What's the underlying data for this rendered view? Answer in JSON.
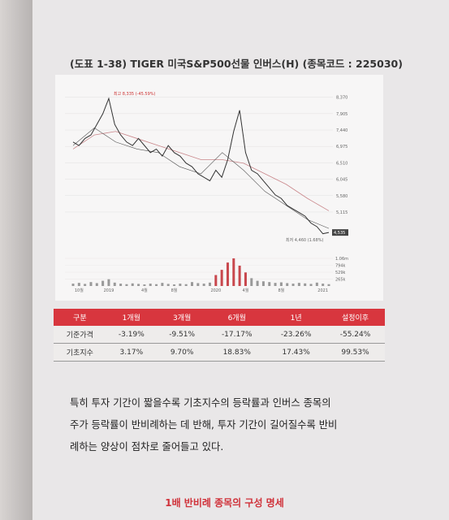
{
  "figure": {
    "title": "(도표 1-38) TIGER 미국S&P500선물 인버스(H) (종목코드 : 225030)",
    "chart": {
      "type": "line",
      "price": [
        7100,
        7000,
        7200,
        7300,
        7600,
        7900,
        8335,
        7600,
        7300,
        7100,
        7000,
        7200,
        7000,
        6800,
        6900,
        6700,
        7000,
        6800,
        6700,
        6500,
        6400,
        6200,
        6100,
        6000,
        6300,
        6100,
        6600,
        7400,
        8000,
        6800,
        6300,
        6200,
        6000,
        5800,
        5600,
        5500,
        5300,
        5200,
        5100,
        5000,
        4800,
        4700,
        4500,
        4535
      ],
      "ma_long": [
        6900,
        7300,
        7400,
        7200,
        7000,
        6800,
        6600,
        6600,
        6500,
        6200,
        5900,
        5500,
        5150
      ],
      "ma_short": [
        7000,
        7500,
        7100,
        6900,
        6800,
        6400,
        6200,
        6800,
        6300,
        5700,
        5300,
        4900,
        4650
      ],
      "ylim": [
        4400,
        8500
      ],
      "yticks": [
        {
          "value": 8370,
          "label": "8,370"
        },
        {
          "value": 7905,
          "label": "7,905"
        },
        {
          "value": 7440,
          "label": "7,440"
        },
        {
          "value": 6975,
          "label": "6,975"
        },
        {
          "value": 6510,
          "label": "6,510"
        },
        {
          "value": 6045,
          "label": "6,045"
        },
        {
          "value": 5580,
          "label": "5,580"
        },
        {
          "value": 5115,
          "label": "5,115"
        }
      ],
      "last_label": {
        "value": 4535,
        "label": "4,535"
      },
      "high_note": "최고 8,335 (-45.59%)",
      "low_note": "최저 4,460 (1.68%)",
      "volume": [
        90000,
        120000,
        80000,
        150000,
        110000,
        200000,
        260000,
        130000,
        90000,
        70000,
        100000,
        80000,
        60000,
        90000,
        70000,
        120000,
        80000,
        60000,
        90000,
        70000,
        150000,
        110000,
        90000,
        130000,
        420000,
        620000,
        900000,
        1060000,
        780000,
        520000,
        300000,
        200000,
        180000,
        150000,
        120000,
        140000,
        110000,
        90000,
        120000,
        100000,
        80000,
        130000,
        90000,
        70000
      ],
      "vlim": [
        0,
        1060000
      ],
      "vticks": [
        {
          "value": 1060000,
          "label": "1.06m"
        },
        {
          "value": 794000,
          "label": "794k"
        },
        {
          "value": 529000,
          "label": "529k"
        },
        {
          "value": 265000,
          "label": "265k"
        }
      ],
      "x_labels": [
        "10월",
        "2019",
        "4월",
        "8월",
        "2020",
        "4월",
        "8월",
        "2021"
      ],
      "x_label_index": [
        1,
        6,
        12,
        17,
        24,
        29,
        35,
        42
      ]
    },
    "price_color": "#333333",
    "ma_long_color": "#c9868a",
    "ma_short_color": "#555555"
  },
  "table": {
    "header": [
      "구분",
      "1개월",
      "3개월",
      "6개월",
      "1년",
      "설정이후"
    ],
    "rows": [
      [
        "기준가격",
        "-3.19%",
        "-9.51%",
        "-17.17%",
        "-23.26%",
        "-55.24%"
      ],
      [
        "기초지수",
        "3.17%",
        "9.70%",
        "18.83%",
        "17.43%",
        "99.53%"
      ]
    ]
  },
  "paragraph": [
    "특히 투자 기간이 짧을수록 기초지수의 등락률과 인버스 종목의",
    "주가 등락률이 반비례하는 데 반해, 투자 기간이 길어질수록 반비",
    "례하는 양상이 점차로 줄어들고 있다."
  ],
  "heading": "1배 반비례 종목의 구성 명세"
}
